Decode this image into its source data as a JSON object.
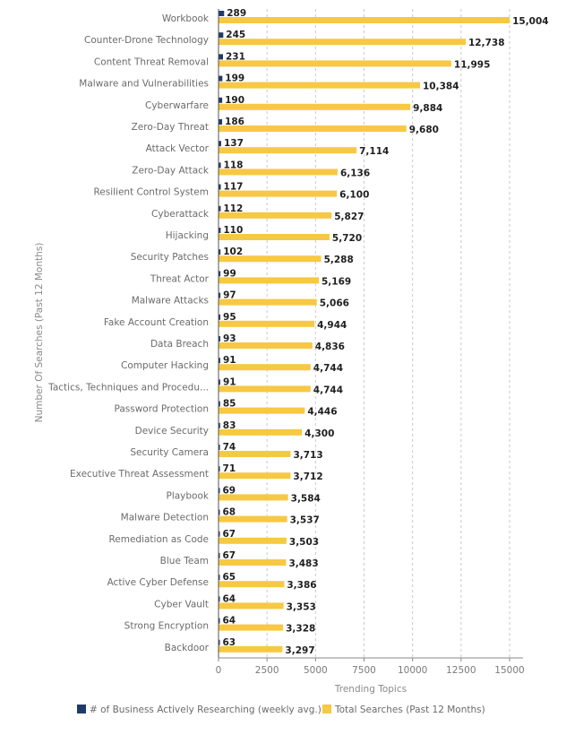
{
  "chart_data": {
    "type": "bar",
    "orientation": "horizontal",
    "categories": [
      "Workbook",
      "Counter-Drone Technology",
      "Content Threat Removal",
      "Malware and Vulnerabilities",
      "Cyberwarfare",
      "Zero-Day Threat",
      "Attack Vector",
      "Zero-Day Attack",
      "Resilient Control System",
      "Cyberattack",
      "Hijacking",
      "Security Patches",
      "Threat Actor",
      "Malware Attacks",
      "Fake Account Creation",
      "Data Breach",
      "Computer Hacking",
      "Tactics, Techniques and Procedu...",
      "Password Protection",
      "Device Security",
      "Security Camera",
      "Executive Threat Assessment",
      "Playbook",
      "Malware Detection",
      "Remediation as Code",
      "Blue Team",
      "Active Cyber Defense",
      "Cyber Vault",
      "Strong Encryption",
      "Backdoor"
    ],
    "series": [
      {
        "name": "# of Business Actively Researching (weekly avg.)",
        "color": "#1f3a68",
        "values": [
          289,
          245,
          231,
          199,
          190,
          186,
          137,
          118,
          117,
          112,
          110,
          102,
          99,
          97,
          95,
          93,
          91,
          91,
          85,
          83,
          74,
          71,
          69,
          68,
          67,
          67,
          65,
          64,
          64,
          63
        ],
        "labels": [
          "289",
          "245",
          "231",
          "199",
          "190",
          "186",
          "137",
          "118",
          "117",
          "112",
          "110",
          "102",
          "99",
          "97",
          "95",
          "93",
          "91",
          "91",
          "85",
          "83",
          "74",
          "71",
          "69",
          "68",
          "67",
          "67",
          "65",
          "64",
          "64",
          "63"
        ]
      },
      {
        "name": "Total Searches (Past 12 Months)",
        "color": "#f7c843",
        "values": [
          15004,
          12738,
          11995,
          10384,
          9884,
          9680,
          7114,
          6136,
          6100,
          5827,
          5720,
          5288,
          5169,
          5066,
          4944,
          4836,
          4744,
          4744,
          4446,
          4300,
          3713,
          3712,
          3584,
          3537,
          3503,
          3483,
          3386,
          3353,
          3328,
          3297
        ],
        "labels": [
          "15,004",
          "12,738",
          "11,995",
          "10,384",
          "9,884",
          "9,680",
          "7,114",
          "6,136",
          "6,100",
          "5,827",
          "5,720",
          "5,288",
          "5,169",
          "5,066",
          "4,944",
          "4,836",
          "4,744",
          "4,744",
          "4,446",
          "4,300",
          "3,713",
          "3,712",
          "3,584",
          "3,537",
          "3,503",
          "3,483",
          "3,386",
          "3,353",
          "3,328",
          "3,297"
        ]
      }
    ],
    "xlabel": "Trending Topics",
    "ylabel": "Number Of Searches (Past 12 Months)",
    "xlim": [
      0,
      15000
    ],
    "xticks": [
      0,
      2500,
      5000,
      7500,
      10000,
      12500,
      15000
    ],
    "xtick_labels": [
      "0",
      "2500",
      "5000",
      "7500",
      "10000",
      "12500",
      "15000"
    ],
    "grid": "vertical-dashed",
    "legend": "bottom"
  }
}
